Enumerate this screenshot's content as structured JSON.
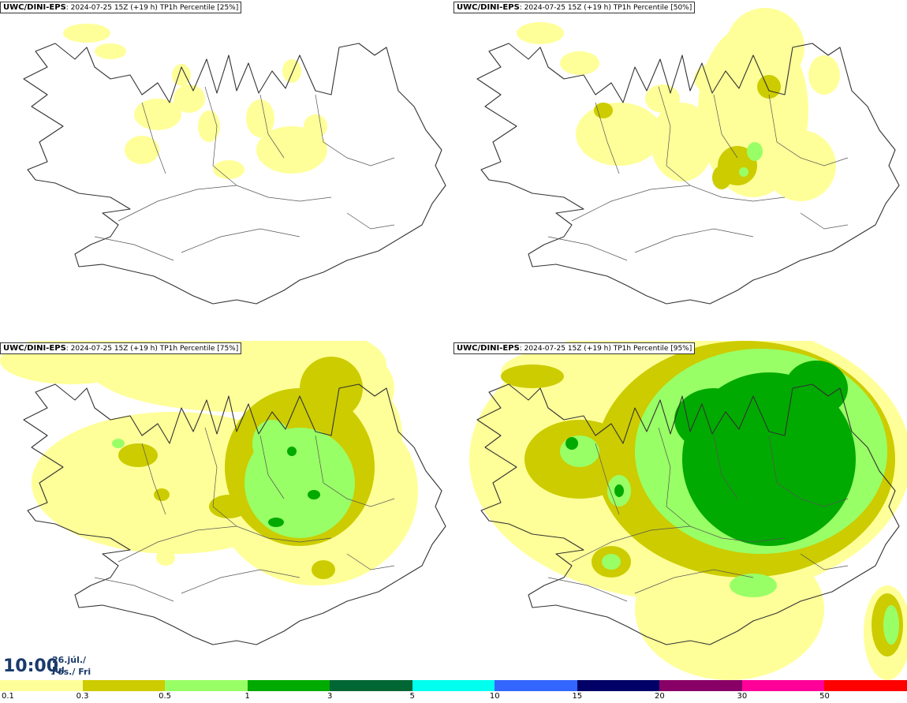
{
  "panels": [
    {
      "model": "UWC/DINI-EPS",
      "info": ": 2024-07-25 15Z (+19 h) TP1h Percentile [25%]"
    },
    {
      "model": "UWC/DINI-EPS",
      "info": ": 2024-07-25 15Z (+19 h) TP1h Percentile [50%]"
    },
    {
      "model": "UWC/DINI-EPS",
      "info": ": 2024-07-25 15Z (+19 h) TP1h Percentile [75%]"
    },
    {
      "model": "UWC/DINI-EPS",
      "info": ": 2024-07-25 15Z (+19 h) TP1h Percentile [95%]"
    }
  ],
  "time": {
    "clock": "10:00",
    "date": "26.júl./ Jul",
    "day": "Fös./ Fri"
  },
  "legend": {
    "colors": [
      "#ffff99",
      "#cccc00",
      "#99ff66",
      "#00aa00",
      "#006633",
      "#00ffee",
      "#3366ff",
      "#000066",
      "#880066",
      "#ff0099",
      "#ff0000"
    ],
    "ticks": [
      "0.1",
      "0.3",
      "0.5",
      "1",
      "3",
      "5",
      "10",
      "15",
      "20",
      "30",
      "50"
    ]
  }
}
